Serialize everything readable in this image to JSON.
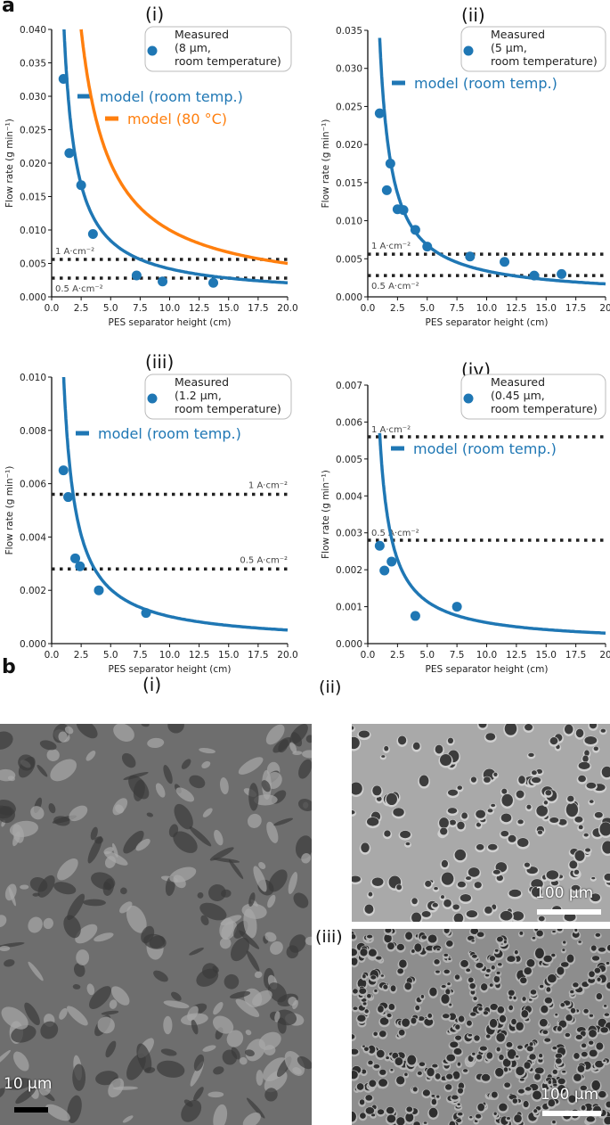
{
  "panel_a_label": "a",
  "panel_b_label": "b",
  "colors": {
    "blue": "#1f77b4",
    "orange": "#ff7f0e",
    "refline": "#222222"
  },
  "chart_data": [
    {
      "type": "scatter+line",
      "title": "(i)",
      "xlabel": "PES separator height (cm)",
      "ylabel": "Flow rate (g min⁻¹)",
      "xlim": [
        0,
        20
      ],
      "ylim": [
        0,
        0.04
      ],
      "xticks": [
        "0.0",
        "2.5",
        "5.0",
        "7.5",
        "10.0",
        "12.5",
        "15.0",
        "17.5",
        "20.0"
      ],
      "yticks": [
        "0.000",
        "0.005",
        "0.010",
        "0.015",
        "0.020",
        "0.025",
        "0.030",
        "0.035",
        "0.040"
      ],
      "measured": {
        "label_lines": [
          "Measured",
          "(8 µm,",
          "room temperature)"
        ],
        "x": [
          1.0,
          1.5,
          2.5,
          3.5,
          7.2,
          9.4,
          13.7
        ],
        "y": [
          0.0326,
          0.0215,
          0.0167,
          0.0094,
          0.0032,
          0.0023,
          0.0021
        ]
      },
      "models": [
        {
          "name": "model (room temp.)",
          "k": 0.042,
          "color": "blue",
          "xmin": 1.0
        },
        {
          "name": "model (80 °C)",
          "k": 0.1,
          "color": "orange",
          "xmin": 2.5
        }
      ],
      "reflines": [
        {
          "label": "1 A·cm⁻²",
          "y": 0.0056
        },
        {
          "label": "0.5 A·cm⁻²",
          "y": 0.0028
        }
      ]
    },
    {
      "type": "scatter+line",
      "title": "(ii)",
      "xlabel": "PES separator height (cm)",
      "ylabel": "Flow rate (g min⁻¹)",
      "xlim": [
        0,
        20
      ],
      "ylim": [
        0,
        0.035
      ],
      "xticks": [
        "0.0",
        "2.5",
        "5.0",
        "7.5",
        "10.0",
        "12.5",
        "15.0",
        "17.5",
        "20"
      ],
      "yticks": [
        "0.000",
        "0.005",
        "0.010",
        "0.015",
        "0.020",
        "0.025",
        "0.030",
        "0.035"
      ],
      "measured": {
        "label_lines": [
          "Measured",
          "(5 µm,",
          "room temperature)"
        ],
        "x": [
          1.0,
          1.6,
          1.9,
          2.5,
          3.0,
          4.0,
          5.0,
          8.6,
          11.5,
          14.0,
          16.3
        ],
        "y": [
          0.0241,
          0.014,
          0.0175,
          0.0115,
          0.0114,
          0.0088,
          0.0066,
          0.0053,
          0.0046,
          0.0028,
          0.003
        ]
      },
      "models": [
        {
          "name": "model (room temp.)",
          "k": 0.034,
          "color": "blue",
          "xmin": 1.0
        }
      ],
      "reflines": [
        {
          "label": "1 A·cm⁻²",
          "y": 0.0056
        },
        {
          "label": "0.5 A·cm⁻²",
          "y": 0.0028
        }
      ]
    },
    {
      "type": "scatter+line",
      "title": "(iii)",
      "xlabel": "PES separator height (cm)",
      "ylabel": "Flow rate (g min⁻¹)",
      "xlim": [
        0,
        20
      ],
      "ylim": [
        0,
        0.01
      ],
      "xticks": [
        "0.0",
        "2.5",
        "5.0",
        "7.5",
        "10.0",
        "12.5",
        "15.0",
        "17.5",
        "20.0"
      ],
      "yticks": [
        "0.000",
        "0.002",
        "0.004",
        "0.006",
        "0.008",
        "0.010"
      ],
      "measured": {
        "label_lines": [
          "Measured",
          "(1.2 µm,",
          "room temperature)"
        ],
        "x": [
          1.0,
          1.4,
          2.0,
          2.4,
          4.0,
          8.0
        ],
        "y": [
          0.0065,
          0.0055,
          0.0032,
          0.0029,
          0.002,
          0.00115
        ]
      },
      "models": [
        {
          "name": "model (room temp.)",
          "k": 0.0102,
          "color": "blue",
          "xmin": 1.0
        }
      ],
      "reflines": [
        {
          "label": "1 A·cm⁻²",
          "y": 0.0056
        },
        {
          "label": "0.5 A·cm⁻²",
          "y": 0.0028
        }
      ]
    },
    {
      "type": "scatter+line",
      "title": "(iv)",
      "xlabel": "PES separator height (cm)",
      "ylabel": "Flow rate (g min⁻¹)",
      "xlim": [
        0,
        20
      ],
      "ylim": [
        0,
        0.007
      ],
      "xticks": [
        "0.0",
        "2.5",
        "5.0",
        "7.5",
        "10.0",
        "12.5",
        "15.0",
        "17.5",
        "20"
      ],
      "yticks": [
        "0.000",
        "0.001",
        "0.002",
        "0.003",
        "0.004",
        "0.005",
        "0.006",
        "0.007"
      ],
      "measured": {
        "label_lines": [
          "Measured",
          "(0.45 µm,",
          "room temperature)"
        ],
        "x": [
          1.0,
          1.4,
          2.0,
          4.0,
          7.5
        ],
        "y": [
          0.00265,
          0.00198,
          0.00222,
          0.00075,
          0.001
        ]
      },
      "models": [
        {
          "name": "model (room temp.)",
          "k": 0.0057,
          "color": "blue",
          "xmin": 1.0
        }
      ],
      "reflines": [
        {
          "label": "1 A·cm⁻²",
          "y": 0.0056
        },
        {
          "label": "0.5 A·cm⁻²",
          "y": 0.0028
        }
      ]
    }
  ],
  "sem": {
    "i": {
      "label": "(i)",
      "scale": "10 µm"
    },
    "ii": {
      "label": "(ii)",
      "scale": "100 µm"
    },
    "iii": {
      "label": "(iii)",
      "scale": "100 µm"
    }
  }
}
